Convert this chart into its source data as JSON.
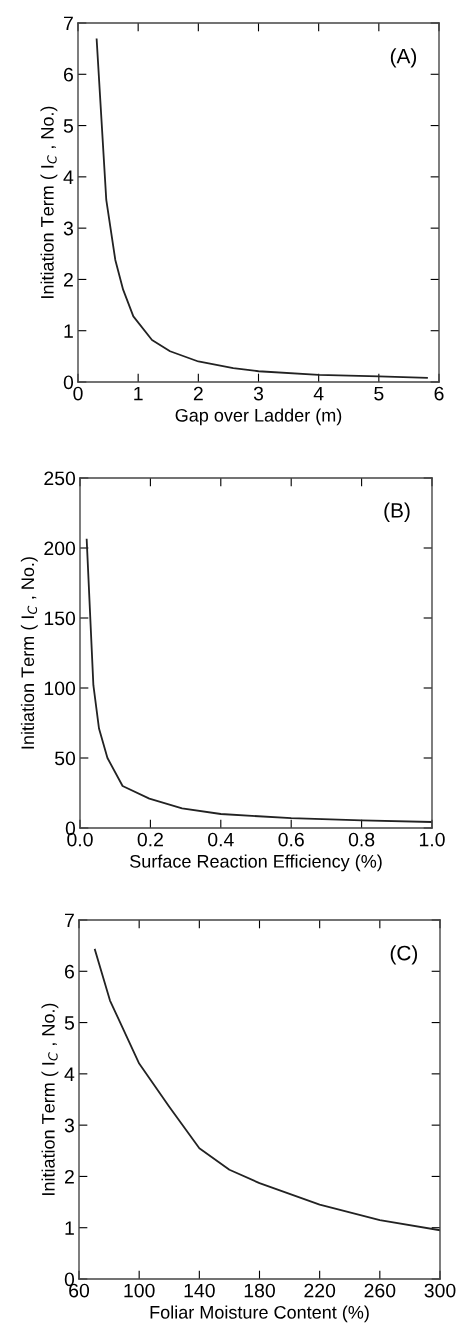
{
  "chart_data": [
    {
      "type": "line",
      "xlabel": "Gap over Ladder (m)",
      "ylabel": "Initiation Term ( I$_{C}$ , No.)",
      "annotations": [
        "(A)"
      ],
      "series": [
        {
          "color": "#222222",
          "x": [
            0.31,
            0.47,
            0.62,
            0.75,
            0.92,
            1.23,
            1.53,
            2.0,
            2.58,
            3.0,
            4.0,
            5.0,
            5.8
          ],
          "values": [
            6.68,
            3.55,
            2.38,
            1.8,
            1.28,
            0.82,
            0.6,
            0.4,
            0.27,
            0.21,
            0.14,
            0.11,
            0.08
          ]
        }
      ],
      "xlim": [
        0,
        6
      ],
      "xticks": [
        0,
        1,
        2,
        3,
        4,
        5,
        6
      ],
      "ylim": [
        0,
        7
      ],
      "yticks": [
        0,
        1,
        2,
        3,
        4,
        5,
        6,
        7
      ],
      "grid": false,
      "legend": false,
      "marker": "none",
      "line_style": "solid"
    },
    {
      "type": "line",
      "xlabel": "Surface Reaction Efficiency (%)",
      "ylabel": "Initiation Term ( I$_{C}$ , No.)",
      "annotations": [
        "(B)"
      ],
      "series": [
        {
          "color": "#222222",
          "x": [
            0.019,
            0.038,
            0.054,
            0.078,
            0.121,
            0.197,
            0.29,
            0.4,
            0.6,
            0.8,
            1.0
          ],
          "values": [
            206,
            102,
            71,
            50,
            30,
            21,
            14,
            10,
            7,
            5.5,
            4.3
          ]
        }
      ],
      "xlim": [
        0,
        1
      ],
      "xticks": [
        {
          "value": 0,
          "label": "0.0"
        },
        0.2,
        0.4,
        0.6,
        0.8,
        {
          "value": 1,
          "label": "1.0"
        }
      ],
      "ylim": [
        0,
        250
      ],
      "yticks": [
        0,
        50,
        100,
        150,
        200,
        250
      ],
      "grid": false,
      "legend": false,
      "marker": "none",
      "line_style": "solid"
    },
    {
      "type": "line",
      "xlabel": "Foliar Moisture Content (%)",
      "ylabel": "Initiation Term ( I$_{C}$ , No.)",
      "annotations": [
        "(C)"
      ],
      "series": [
        {
          "color": "#222222",
          "x": [
            70.6,
            80.6,
            100,
            120,
            140,
            160,
            180,
            220,
            260,
            300
          ],
          "values": [
            6.42,
            5.43,
            4.2,
            3.36,
            2.55,
            2.13,
            1.87,
            1.45,
            1.15,
            0.95
          ]
        }
      ],
      "xlim": [
        60,
        300
      ],
      "xticks": [
        60,
        100,
        140,
        180,
        220,
        260,
        300
      ],
      "ylim": [
        0,
        7
      ],
      "yticks": [
        0,
        1,
        2,
        3,
        4,
        5,
        6,
        7
      ],
      "grid": false,
      "legend": false,
      "marker": "none",
      "line_style": "solid"
    }
  ]
}
